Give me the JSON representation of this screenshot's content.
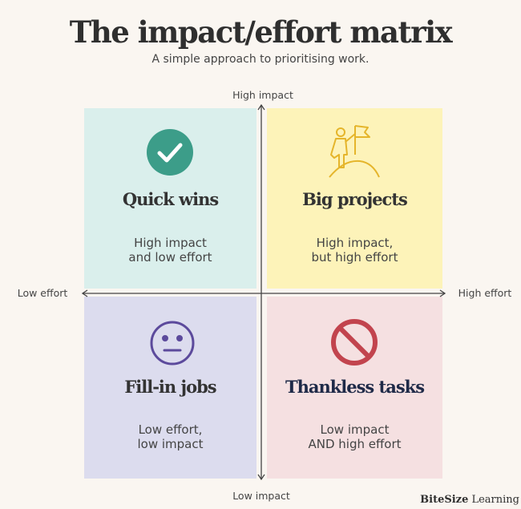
{
  "header": {
    "title": "The impact/effort matrix",
    "subtitle": "A simple approach to prioritising work."
  },
  "axes": {
    "top": "High impact",
    "bottom": "Low impact",
    "left": "Low effort",
    "right": "High effort"
  },
  "quadrants": [
    {
      "title": "Quick wins",
      "lines": [
        "High impact",
        "and low effort"
      ]
    },
    {
      "title": "Big projects",
      "lines": [
        "High impact,",
        "but high effort"
      ]
    },
    {
      "title": "Fill-in jobs",
      "lines": [
        "Low effort,",
        "low impact"
      ]
    },
    {
      "title": "Thankless tasks",
      "lines": [
        "Low impact",
        "AND high effort"
      ]
    }
  ],
  "brand": {
    "bold": "BiteSize",
    "rest": "Learning"
  }
}
